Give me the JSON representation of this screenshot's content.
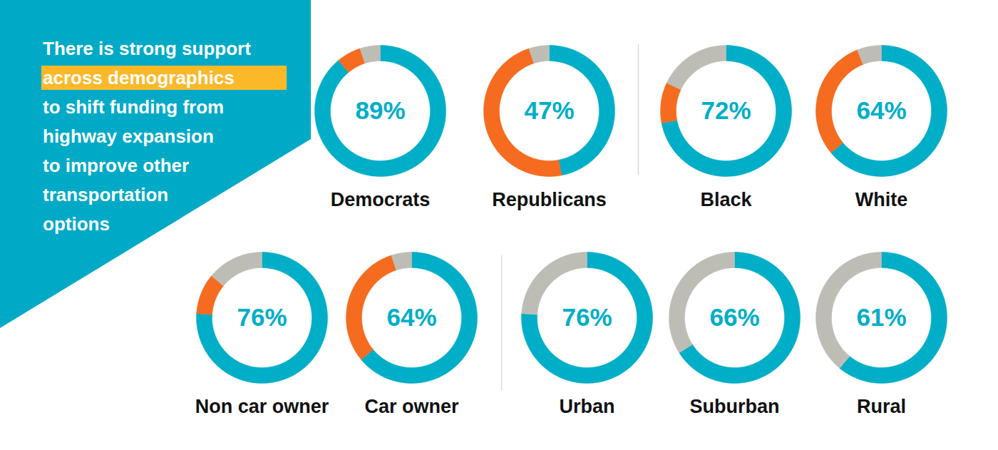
{
  "chart_data": {
    "type": "donut",
    "title": [
      "There is strong support",
      "across demographics",
      "to shift funding from",
      "highway expansion",
      "to improve other",
      "transportation",
      "options"
    ],
    "categories": [
      "Democrats",
      "Republicans",
      "Black",
      "White",
      "Non car owner",
      "Car owner",
      "Urban",
      "Suburban",
      "Rural"
    ],
    "series": [
      {
        "color": "#00aec7",
        "values": [
          89,
          47,
          72,
          64,
          76,
          64,
          76,
          66,
          61
        ],
        "value_labels": [
          "89%",
          "47%",
          "72%",
          "64%",
          "76%",
          "64%",
          "76%",
          "66%",
          "61%"
        ]
      },
      {
        "color": "#f56b1f",
        "values": [
          6,
          48,
          10,
          30,
          10,
          31,
          0,
          0,
          0
        ]
      },
      {
        "color": "#bdbdb6",
        "values": [
          5,
          5,
          18,
          6,
          14,
          5,
          24,
          34,
          39
        ]
      }
    ],
    "data_labels": true
  }
}
